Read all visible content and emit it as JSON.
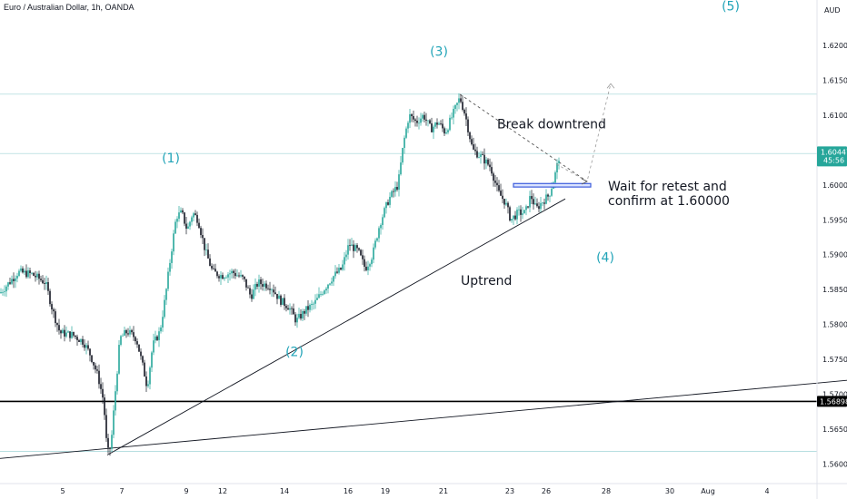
{
  "header": {
    "title": "Euro / Australian Dollar, 1h, OANDA"
  },
  "axis": {
    "currency": "AUD"
  },
  "chart_data": {
    "type": "candlestick",
    "title": "Euro / Australian Dollar, 1h, OANDA",
    "ylim": [
      1.5572,
      1.6265
    ],
    "y_ticks": [
      "1.56000",
      "1.56500",
      "1.57000",
      "1.57500",
      "1.58000",
      "1.58500",
      "1.59000",
      "1.59500",
      "1.60000",
      "1.60500",
      "1.61000",
      "1.61500",
      "1.62000"
    ],
    "x_ticks": [
      "5",
      "7",
      "9",
      "12",
      "14",
      "16",
      "19",
      "21",
      "23",
      "26",
      "28",
      "30",
      "Aug",
      "4"
    ],
    "path": [
      [
        0,
        1.5845
      ],
      [
        10,
        1.586
      ],
      [
        20,
        1.5875
      ],
      [
        35,
        1.5872
      ],
      [
        50,
        1.586
      ],
      [
        58,
        1.582
      ],
      [
        66,
        1.5788
      ],
      [
        80,
        1.5785
      ],
      [
        92,
        1.5775
      ],
      [
        100,
        1.5755
      ],
      [
        108,
        1.5725
      ],
      [
        114,
        1.569
      ],
      [
        118,
        1.5615
      ],
      [
        122,
        1.5625
      ],
      [
        126,
        1.569
      ],
      [
        132,
        1.578
      ],
      [
        140,
        1.579
      ],
      [
        150,
        1.578
      ],
      [
        158,
        1.5735
      ],
      [
        162,
        1.571
      ],
      [
        168,
        1.577
      ],
      [
        176,
        1.579
      ],
      [
        182,
        1.584
      ],
      [
        188,
        1.59
      ],
      [
        194,
        1.5955
      ],
      [
        200,
        1.596
      ],
      [
        206,
        1.5935
      ],
      [
        212,
        1.596
      ],
      [
        218,
        1.595
      ],
      [
        226,
        1.5905
      ],
      [
        234,
        1.5875
      ],
      [
        244,
        1.587
      ],
      [
        256,
        1.5875
      ],
      [
        268,
        1.5865
      ],
      [
        276,
        1.584
      ],
      [
        284,
        1.586
      ],
      [
        298,
        1.5855
      ],
      [
        308,
        1.5835
      ],
      [
        318,
        1.5825
      ],
      [
        326,
        1.5805
      ],
      [
        336,
        1.582
      ],
      [
        346,
        1.583
      ],
      [
        356,
        1.585
      ],
      [
        366,
        1.5868
      ],
      [
        376,
        1.588
      ],
      [
        384,
        1.5915
      ],
      [
        394,
        1.5905
      ],
      [
        402,
        1.588
      ],
      [
        410,
        1.59
      ],
      [
        418,
        1.5945
      ],
      [
        428,
        1.598
      ],
      [
        438,
        1.6
      ],
      [
        444,
        1.606
      ],
      [
        450,
        1.61
      ],
      [
        458,
        1.609
      ],
      [
        466,
        1.61
      ],
      [
        474,
        1.608
      ],
      [
        482,
        1.609
      ],
      [
        490,
        1.6075
      ],
      [
        498,
        1.61
      ],
      [
        506,
        1.6125
      ],
      [
        512,
        1.61
      ],
      [
        520,
        1.605
      ],
      [
        530,
        1.604
      ],
      [
        540,
        1.6025
      ],
      [
        548,
        1.599
      ],
      [
        556,
        1.5975
      ],
      [
        562,
        1.595
      ],
      [
        570,
        1.596
      ],
      [
        578,
        1.596
      ],
      [
        584,
        1.5985
      ],
      [
        590,
        1.5965
      ],
      [
        596,
        1.5975
      ],
      [
        604,
        1.5985
      ],
      [
        610,
        1.601
      ],
      [
        616,
        1.6045
      ]
    ],
    "current_price": {
      "value": "1.60447",
      "countdown": "45:56",
      "color": "#26a69a"
    },
    "support_level": {
      "value": "1.56898",
      "color": "#000000"
    },
    "wave_labels": [
      {
        "text": "(1)",
        "x": 188,
        "y": 1.6032
      },
      {
        "text": "(2)",
        "x": 324,
        "y": 1.5755
      },
      {
        "text": "(3)",
        "x": 483,
        "y": 1.6185
      },
      {
        "text": "(4)",
        "x": 666,
        "y": 1.589
      },
      {
        "text": "(5)",
        "x": 804,
        "y": 1.625
      }
    ],
    "annotations": [
      {
        "text": "Break downtrend",
        "x": 547,
        "y": 1.6081
      },
      {
        "text": "Wait for retest and",
        "x": 669,
        "y": 1.5992
      },
      {
        "text": "confirm at 1.60000",
        "x": 669,
        "y": 1.5971
      },
      {
        "text": "Uptrend",
        "x": 507,
        "y": 1.5857
      }
    ],
    "horizontal_lines": [
      1.613,
      1.6045,
      1.56898,
      1.5618
    ],
    "uptrend_line": [
      [
        118,
        1.5613
      ],
      [
        622,
        1.598
      ]
    ],
    "long_trend_line": [
      [
        0,
        1.5608
      ],
      [
        932,
        1.572
      ]
    ],
    "downtrend_line": [
      [
        506,
        1.613
      ],
      [
        646,
        1.6005
      ]
    ],
    "projection_path": [
      [
        612,
        1.603
      ],
      [
        646,
        1.6005
      ],
      [
        672,
        1.6145
      ]
    ],
    "retest_box": {
      "x0": 565,
      "x1": 650,
      "y0": 1.6002,
      "y1": 1.5997,
      "color": "#3b5bdb"
    },
    "up_color": "#26a69a",
    "down_color": "#131722",
    "label_color": "#22a4b8",
    "grid": false
  }
}
